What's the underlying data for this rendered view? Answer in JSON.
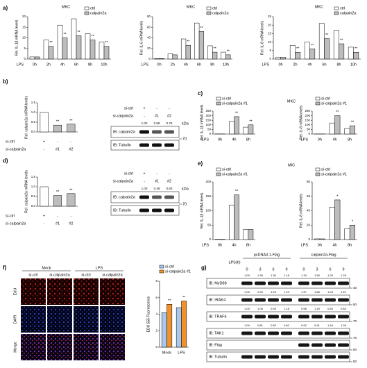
{
  "panels": [
    "a)",
    "b)",
    "c)",
    "d)",
    "e)",
    "f)",
    "g)"
  ],
  "chart_data": [
    {
      "type": "bar",
      "title": "MKC",
      "ylabel": "Rel. IL-1β mRNA levels",
      "xlabel": "LPS",
      "categories": [
        "0h",
        "2h",
        "4h",
        "6h",
        "8h",
        "10h"
      ],
      "legend": true,
      "series": [
        {
          "name": "ctrl",
          "color": "#ffffff",
          "values": [
            1,
            9,
            16,
            19,
            12,
            8
          ]
        },
        {
          "name": "calpain2a",
          "color": "#bdbdbd",
          "values": [
            1,
            6,
            10,
            11,
            9,
            6
          ],
          "annotations": [
            {
              "index": 1,
              "text": "**"
            },
            {
              "index": 2,
              "text": "**"
            },
            {
              "index": 3,
              "text": "**"
            },
            {
              "index": 4,
              "text": "**"
            },
            {
              "index": 5,
              "text": "**"
            }
          ]
        }
      ],
      "ylim": [
        0,
        20
      ],
      "yticks": [
        0,
        5,
        10,
        15,
        20
      ]
    },
    {
      "type": "bar",
      "title": "MKC",
      "ylabel": "Rel. IL-6 mRNA levels",
      "xlabel": "LPS",
      "categories": [
        "0h",
        "2h",
        "4h",
        "6h",
        "8h",
        "10h"
      ],
      "legend": true,
      "series": [
        {
          "name": "ctrl",
          "color": "#ffffff",
          "values": [
            1,
            10,
            38,
            68,
            25,
            13
          ]
        },
        {
          "name": "calpain2a",
          "color": "#bdbdbd",
          "values": [
            1,
            8,
            26,
            52,
            13,
            8
          ],
          "annotations": [
            {
              "index": 2,
              "text": "**"
            },
            {
              "index": 3,
              "text": "**"
            },
            {
              "index": 4,
              "text": "**"
            },
            {
              "index": 5,
              "text": "**"
            }
          ]
        }
      ],
      "ylim": [
        0,
        80
      ],
      "yticks": [
        0,
        20,
        40,
        60,
        80
      ]
    },
    {
      "type": "bar",
      "title": "MKC",
      "ylabel": "Rel. IL-8 mRNA levels",
      "xlabel": "LPS",
      "categories": [
        "0h",
        "2h",
        "4h",
        "6h",
        "8h",
        "10h"
      ],
      "legend": true,
      "series": [
        {
          "name": "ctrl",
          "color": "#ffffff",
          "values": [
            1,
            8,
            10,
            21,
            17,
            7
          ]
        },
        {
          "name": "calpain2a",
          "color": "#bdbdbd",
          "values": [
            1,
            4,
            6,
            12,
            9,
            4
          ],
          "annotations": [
            {
              "index": 1,
              "text": "**"
            },
            {
              "index": 2,
              "text": "**"
            },
            {
              "index": 3,
              "text": "**"
            },
            {
              "index": 4,
              "text": "**"
            },
            {
              "index": 5,
              "text": "**"
            }
          ]
        }
      ],
      "ylim": [
        0,
        25
      ],
      "yticks": [
        0,
        5,
        10,
        15,
        20,
        25
      ]
    },
    {
      "type": "bar",
      "ylabel": "Rel. calpain2a mRNA levels",
      "categories": [
        null,
        null,
        null
      ],
      "values": [
        1.0,
        0.35,
        0.4
      ],
      "colors": [
        "#ffffff",
        "#bdbdbd",
        "#bdbdbd"
      ],
      "annotations": [
        {
          "index": 1,
          "text": "**"
        },
        {
          "index": 2,
          "text": "**"
        }
      ],
      "treatments": [
        {
          "label": "si-ctrl",
          "lanes": [
            "+",
            "-",
            "-"
          ]
        },
        {
          "label": "si-calpain2a",
          "lanes": [
            "-",
            "#1",
            "#2"
          ]
        }
      ],
      "ylim": [
        0,
        1.5
      ],
      "yticks": [
        {
          "value": 0,
          "label": "0.0"
        },
        {
          "value": 0.5,
          "label": "0.5"
        },
        {
          "value": 1,
          "label": "1.0"
        },
        {
          "value": 1.5,
          "label": "1.5"
        }
      ]
    },
    {
      "type": "bar",
      "title": "MKC",
      "ylabel": "Rel. IL-1β mRNA levels",
      "xlabel": "LPS",
      "categories": [
        "0h",
        "4h",
        "8h"
      ],
      "legend": true,
      "series": [
        {
          "name": "si-ctrl",
          "color": "#ffffff",
          "values": [
            1,
            140,
            75
          ]
        },
        {
          "name": "si-calpain2a #1",
          "color": "#bdbdbd",
          "values": [
            1,
            190,
            100
          ],
          "annotations": [
            {
              "index": 1,
              "text": "**"
            },
            {
              "index": 2,
              "text": "**"
            }
          ]
        }
      ],
      "ylim": [
        0,
        250
      ],
      "yticks": [
        0,
        50,
        100,
        150,
        200,
        250
      ]
    },
    {
      "type": "bar",
      "ylabel": "Rel. IL-8 mRNA levels",
      "xlabel": "LPS",
      "categories": [
        "0h",
        "4h",
        "8h"
      ],
      "legend": true,
      "series": [
        {
          "name": "si-ctrl",
          "color": "#ffffff",
          "values": [
            1,
            120,
            60
          ]
        },
        {
          "name": "si-calpain2a #1",
          "color": "#bdbdbd",
          "values": [
            1,
            200,
            90
          ],
          "annotations": [
            {
              "index": 1,
              "text": "**"
            },
            {
              "index": 2,
              "text": "**"
            }
          ]
        }
      ],
      "ylim": [
        0,
        250
      ],
      "yticks": [
        0,
        50,
        100,
        150,
        200,
        250
      ]
    },
    {
      "type": "bar",
      "ylabel": "Rel. calpain2a mRNA levels",
      "categories": [
        null,
        null,
        null
      ],
      "values": [
        1.0,
        0.55,
        0.65
      ],
      "colors": [
        "#ffffff",
        "#bdbdbd",
        "#bdbdbd"
      ],
      "annotations": [
        {
          "index": 1,
          "text": "**"
        },
        {
          "index": 2,
          "text": "**"
        }
      ],
      "treatments": [
        {
          "label": "si-ctrl",
          "lanes": [
            "+",
            "-",
            "-"
          ]
        },
        {
          "label": "si-calpain2a",
          "lanes": [
            "-",
            "#1",
            "#2"
          ]
        }
      ],
      "ylim": [
        0,
        1.5
      ],
      "yticks": [
        {
          "value": 0,
          "label": "0.0"
        },
        {
          "value": 0.5,
          "label": "0.5"
        },
        {
          "value": 1,
          "label": "1.0"
        },
        {
          "value": 1.5,
          "label": "1.5"
        }
      ]
    },
    {
      "type": "bar",
      "title": "MIC",
      "ylabel": "Rel. IL-1β mRNA levels",
      "xlabel": "LPS",
      "categories": [
        "0h",
        "4h",
        "8h"
      ],
      "legend": true,
      "series": [
        {
          "name": "si-ctrl",
          "color": "#ffffff",
          "values": [
            1,
            120,
            35
          ]
        },
        {
          "name": "si-calpain2a #1",
          "color": "#bdbdbd",
          "values": [
            1,
            155,
            35
          ],
          "annotations": [
            {
              "index": 1,
              "text": "**"
            }
          ]
        }
      ],
      "ylim": [
        0,
        200
      ],
      "yticks": [
        0,
        50,
        100,
        150,
        200
      ]
    },
    {
      "type": "bar",
      "ylabel": "Rel. IL-8 mRNA levels",
      "xlabel": "LPS",
      "categories": [
        "0h",
        "4h",
        "8h"
      ],
      "legend": true,
      "series": [
        {
          "name": "si-ctrl",
          "color": "#ffffff",
          "values": [
            1,
            45,
            15
          ]
        },
        {
          "name": "si-calpain2a #1",
          "color": "#bdbdbd",
          "values": [
            1,
            55,
            20
          ],
          "annotations": [
            {
              "index": 1,
              "text": "*"
            },
            {
              "index": 2,
              "text": "*"
            }
          ]
        }
      ],
      "ylim": [
        0,
        80
      ],
      "yticks": [
        0,
        20,
        40,
        60,
        80
      ]
    },
    {
      "type": "bar",
      "ylabel": "EDU 555 Fluorescence",
      "categories": [
        "Mock",
        "LPS"
      ],
      "legend": true,
      "series": [
        {
          "name": "si-ctrl",
          "color": "#a9c8ee",
          "values": [
            4.2,
            4.8
          ]
        },
        {
          "name": "si-calpain2a #1",
          "color": "#f0922b",
          "values": [
            5.2,
            5.6
          ],
          "annotations": [
            {
              "index": 0,
              "text": "**"
            },
            {
              "index": 1,
              "text": "**"
            }
          ]
        }
      ],
      "ylim": [
        0,
        8
      ],
      "yticks": [
        0,
        2,
        4,
        6,
        8
      ]
    }
  ],
  "blots": [
    {
      "rows": [
        {
          "label": "si-ctrl",
          "lanes": [
            "+",
            "-",
            "-"
          ]
        },
        {
          "label": "si-calpain2a",
          "lanes": [
            "-",
            "#1",
            "#2"
          ]
        }
      ],
      "quant": [
        "1.00",
        "0.69",
        "0.76"
      ],
      "bands": [
        "IB: calpain2a",
        "IB: Tubulin"
      ],
      "kda": "kDa",
      "marker": "70"
    },
    {
      "rows": [
        {
          "label": "si-ctrl",
          "lanes": [
            "+",
            "-",
            "-"
          ]
        },
        {
          "label": "si-calpain2a",
          "lanes": [
            "-",
            "#1",
            "#2"
          ]
        }
      ],
      "quant": [
        "1.00",
        "0.49",
        "0.60"
      ],
      "bands": [
        "IB: calpain2a",
        "IB: Tubulin"
      ],
      "kda": "kDa",
      "marker": "70"
    }
  ],
  "microscopy": {
    "groups": [
      "Mock",
      "LPS"
    ],
    "columns": [
      "si-ctrl",
      "si-calpain2a",
      "si-ctrl",
      "si-calpain2a"
    ],
    "rows": [
      "EdU",
      "DAPI",
      "Merge"
    ]
  },
  "blot_g": {
    "groups": [
      "pcDNA3.1-Flag",
      "calpain2a-Flag"
    ],
    "time_label": "LPS(h)",
    "times": [
      "0",
      "3",
      "6",
      "9",
      "0",
      "3",
      "6",
      "9"
    ],
    "bands": [
      {
        "label": "IB: MyD88",
        "quant": [
          "1.00",
          "1.35",
          "1.30",
          "1.18",
          "1.19",
          "1.50",
          "1.25",
          "1.29"
        ],
        "marker": "40"
      },
      {
        "label": "IB: IRAK4",
        "quant": [
          "1.00",
          "0.99",
          "1.25",
          "1.23",
          "1.37",
          "1.86",
          "1.94",
          "1.57"
        ],
        "marker": "50"
      },
      {
        "label": "IB: TRAF6",
        "quant": [
          "1.00",
          "1.06",
          "0.94",
          "1.18",
          "0.98",
          "1.19",
          "0.83",
          "0.83"
        ],
        "marker": "70"
      },
      {
        "label": "IB: TAK1",
        "quant": [
          "1.00",
          "0.81",
          "0.82",
          "0.82",
          "0.92",
          "0.91",
          "1.18",
          "1.03"
        ],
        "marker": "70"
      },
      {
        "label": "IB: Flag",
        "marker": "50"
      },
      {
        "label": "IB: Tubulin",
        "marker": "50"
      }
    ]
  }
}
